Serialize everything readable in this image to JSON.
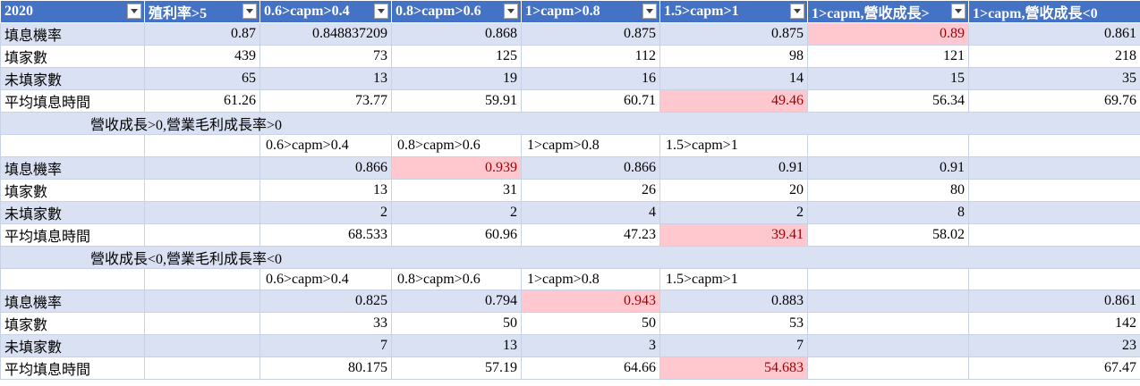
{
  "header": [
    "2020",
    "殖利率>5",
    "0.6>capm>0.4",
    "0.8>capm>0.6",
    "1>capm>0.8",
    "1.5>capm>1",
    "1>capm,營收成長>",
    "1>capm,營收成長<0"
  ],
  "section1": {
    "rows": [
      {
        "label": "填息機率",
        "values": [
          "0.87",
          "0.848837209",
          "0.868",
          "0.875",
          "0.875",
          "0.89",
          "0.861"
        ]
      },
      {
        "label": "填家數",
        "values": [
          "439",
          "73",
          "125",
          "112",
          "98",
          "121",
          "218"
        ]
      },
      {
        "label": "未填家數",
        "values": [
          "65",
          "13",
          "19",
          "16",
          "14",
          "15",
          "35"
        ]
      },
      {
        "label": "平均填息時間",
        "values": [
          "61.26",
          "73.77",
          "59.91",
          "60.71",
          "49.46",
          "56.34",
          "69.76"
        ]
      }
    ]
  },
  "section2": {
    "title": "營收成長>0,營業毛利成長率>0",
    "subheaders": [
      "0.6>capm>0.4",
      "0.8>capm>0.6",
      "1>capm>0.8",
      "1.5>capm>1"
    ],
    "rows": [
      {
        "label": "填息機率",
        "values": [
          "",
          "0.866",
          "0.939",
          "0.866",
          "0.91",
          "0.91",
          ""
        ]
      },
      {
        "label": "填家數",
        "values": [
          "",
          "13",
          "31",
          "26",
          "20",
          "80",
          ""
        ]
      },
      {
        "label": "未填家數",
        "values": [
          "",
          "2",
          "2",
          "4",
          "2",
          "8",
          ""
        ]
      },
      {
        "label": "平均填息時間",
        "values": [
          "",
          "68.533",
          "60.96",
          "47.23",
          "39.41",
          "58.02",
          ""
        ]
      }
    ]
  },
  "section3": {
    "title": "營收成長<0,營業毛利成長率<0",
    "subheaders": [
      "0.6>capm>0.4",
      "0.8>capm>0.6",
      "1>capm>0.8",
      "1.5>capm>1"
    ],
    "rows": [
      {
        "label": "填息機率",
        "values": [
          "",
          "0.825",
          "0.794",
          "0.943",
          "0.883",
          "",
          "0.861"
        ]
      },
      {
        "label": "填家數",
        "values": [
          "",
          "33",
          "50",
          "50",
          "53",
          "",
          "142"
        ]
      },
      {
        "label": "未填家數",
        "values": [
          "",
          "7",
          "13",
          "3",
          "7",
          "",
          "23"
        ]
      },
      {
        "label": "平均填息時間",
        "values": [
          "",
          "80.175",
          "57.19",
          "64.66",
          "54.683",
          "",
          "67.47"
        ]
      }
    ]
  },
  "colors": {
    "header_bg": "#4472c4",
    "band_bg": "#d9e1f2",
    "highlight_bg": "#ffc7ce",
    "highlight_text": "#9c0006"
  }
}
